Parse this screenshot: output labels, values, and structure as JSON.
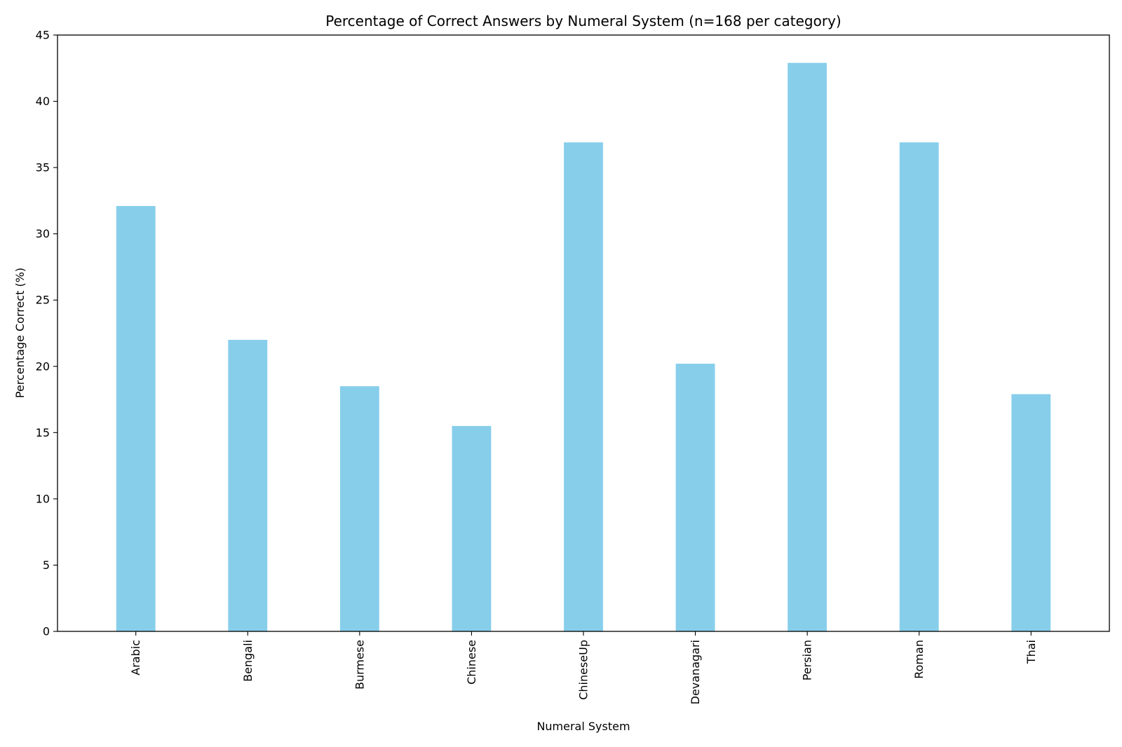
{
  "chart_data": {
    "type": "bar",
    "title": "Percentage of Correct Answers by Numeral System (n=168 per category)",
    "xlabel": "Numeral System",
    "ylabel": "Percentage Correct (%)",
    "categories": [
      "Arabic",
      "Bengali",
      "Burmese",
      "Chinese",
      "ChineseUp",
      "Devanagari",
      "Persian",
      "Roman",
      "Thai"
    ],
    "values": [
      32.1,
      22.0,
      18.5,
      15.5,
      36.9,
      20.2,
      42.9,
      36.9,
      17.9
    ],
    "ylim": [
      0,
      45
    ],
    "yticks": [
      0,
      5,
      10,
      15,
      20,
      25,
      30,
      35,
      40,
      45
    ],
    "grid": false,
    "bar_color": "#87CEEB"
  }
}
